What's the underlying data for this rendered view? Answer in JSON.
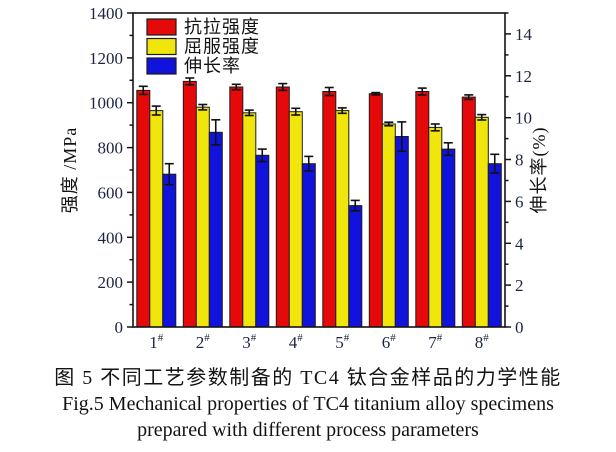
{
  "figure": {
    "caption_cn": "图 5  不同工艺参数制备的 TC4 钛合金样品的力学性能",
    "caption_en_line1": "Fig.5  Mechanical properties of TC4 titanium alloy specimens",
    "caption_en_line2": "prepared with different process parameters"
  },
  "chart_data": {
    "type": "bar",
    "title": "",
    "categories": [
      "1#",
      "2#",
      "3#",
      "4#",
      "5#",
      "6#",
      "7#",
      "8#"
    ],
    "category_superscript_char": "#",
    "series": [
      {
        "key": "tensile-strength",
        "name": "抗拉强度",
        "axis": "left",
        "color": "#e60909",
        "values": [
          1055,
          1095,
          1070,
          1070,
          1050,
          1040,
          1050,
          1025
        ],
        "errors": [
          18,
          15,
          12,
          15,
          18,
          5,
          15,
          10
        ]
      },
      {
        "key": "yield-strength",
        "name": "屈服强度",
        "axis": "left",
        "color": "#f0e60c",
        "values": [
          965,
          980,
          955,
          960,
          965,
          905,
          890,
          935
        ],
        "errors": [
          20,
          12,
          12,
          15,
          12,
          8,
          15,
          12
        ]
      },
      {
        "key": "elongation",
        "name": "伸长率",
        "axis": "right",
        "color": "#1212dd",
        "values": [
          7.3,
          9.3,
          8.2,
          7.8,
          5.8,
          9.1,
          8.5,
          7.8
        ],
        "errors": [
          0.5,
          0.6,
          0.3,
          0.35,
          0.25,
          0.7,
          0.3,
          0.45
        ]
      }
    ],
    "left_axis": {
      "label": "强度 /MPa",
      "min": 0,
      "max": 1400,
      "major_step": 200,
      "minor_step": 100,
      "tick_labels": [
        "0",
        "200",
        "400",
        "600",
        "800",
        "1000",
        "1200",
        "1400"
      ]
    },
    "right_axis": {
      "label": "伸长率(%)",
      "min": 0,
      "max": 15,
      "major_step": 2,
      "minor_step": 1,
      "tick_labels": [
        "0",
        "2",
        "4",
        "6",
        "8",
        "10",
        "12",
        "14"
      ]
    },
    "legend_position": "top-left",
    "grid": false,
    "colors": {
      "frame": "#141414",
      "bar_outline": "#1c1c1c",
      "error_bar": "#111111",
      "tick_label": "#1c2540",
      "axis_label": "#131313"
    }
  }
}
